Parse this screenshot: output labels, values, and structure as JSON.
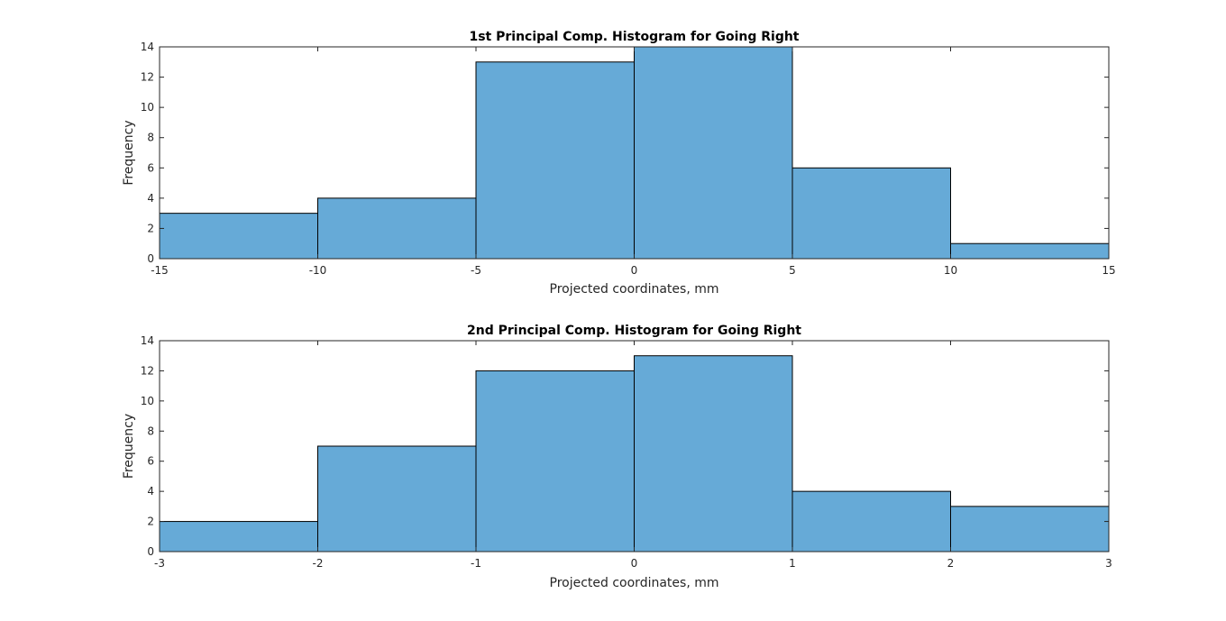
{
  "figure": {
    "background": "#ffffff"
  },
  "chart_data": [
    {
      "type": "bar",
      "title": "1st Principal Comp. Histogram for Going Right",
      "xlabel": "Projected coordinates, mm",
      "ylabel": "Frequency",
      "bin_edges": [
        -15,
        -10,
        -5,
        0,
        5,
        10,
        15
      ],
      "values": [
        3,
        4,
        13,
        14,
        6,
        1
      ],
      "xlim": [
        -15,
        15
      ],
      "ylim": [
        0,
        14
      ],
      "xticks": [
        -15,
        -10,
        -5,
        0,
        5,
        10,
        15
      ],
      "yticks": [
        0,
        2,
        4,
        6,
        8,
        10,
        12,
        14
      ],
      "bar_color": "#66aad7",
      "edge_color": "#000000",
      "grid": false
    },
    {
      "type": "bar",
      "title": "2nd Principal Comp. Histogram for Going Right",
      "xlabel": "Projected coordinates, mm",
      "ylabel": "Frequency",
      "bin_edges": [
        -3,
        -2,
        -1,
        0,
        1,
        2,
        3
      ],
      "values": [
        2,
        7,
        12,
        13,
        4,
        3
      ],
      "xlim": [
        -3,
        3
      ],
      "ylim": [
        0,
        14
      ],
      "xticks": [
        -3,
        -2,
        -1,
        0,
        1,
        2,
        3
      ],
      "yticks": [
        0,
        2,
        4,
        6,
        8,
        10,
        12,
        14
      ],
      "bar_color": "#66aad7",
      "edge_color": "#000000",
      "grid": false
    }
  ]
}
